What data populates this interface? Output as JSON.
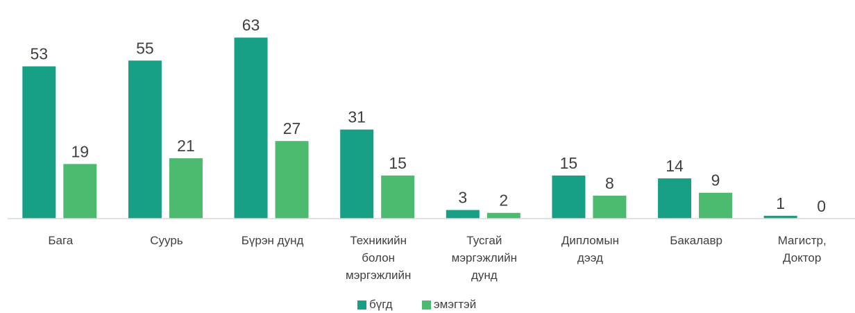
{
  "chart_data": {
    "type": "bar",
    "categories": [
      "Бага",
      "Суурь",
      "Бүрэн дунд",
      "Техникийн болон мэргэжлийн",
      "Тусгай мэргэжлийн дунд",
      "Дипломын дээд",
      "Бакалавр",
      "Магистр, Доктор"
    ],
    "series": [
      {
        "name": "бүгд",
        "color": "#17a086",
        "values": [
          53,
          55,
          63,
          31,
          3,
          15,
          14,
          1
        ]
      },
      {
        "name": "эмэгтэй",
        "color": "#4dbb6f",
        "values": [
          19,
          21,
          27,
          15,
          2,
          8,
          9,
          0
        ]
      }
    ],
    "ylim": [
      0,
      70
    ]
  }
}
